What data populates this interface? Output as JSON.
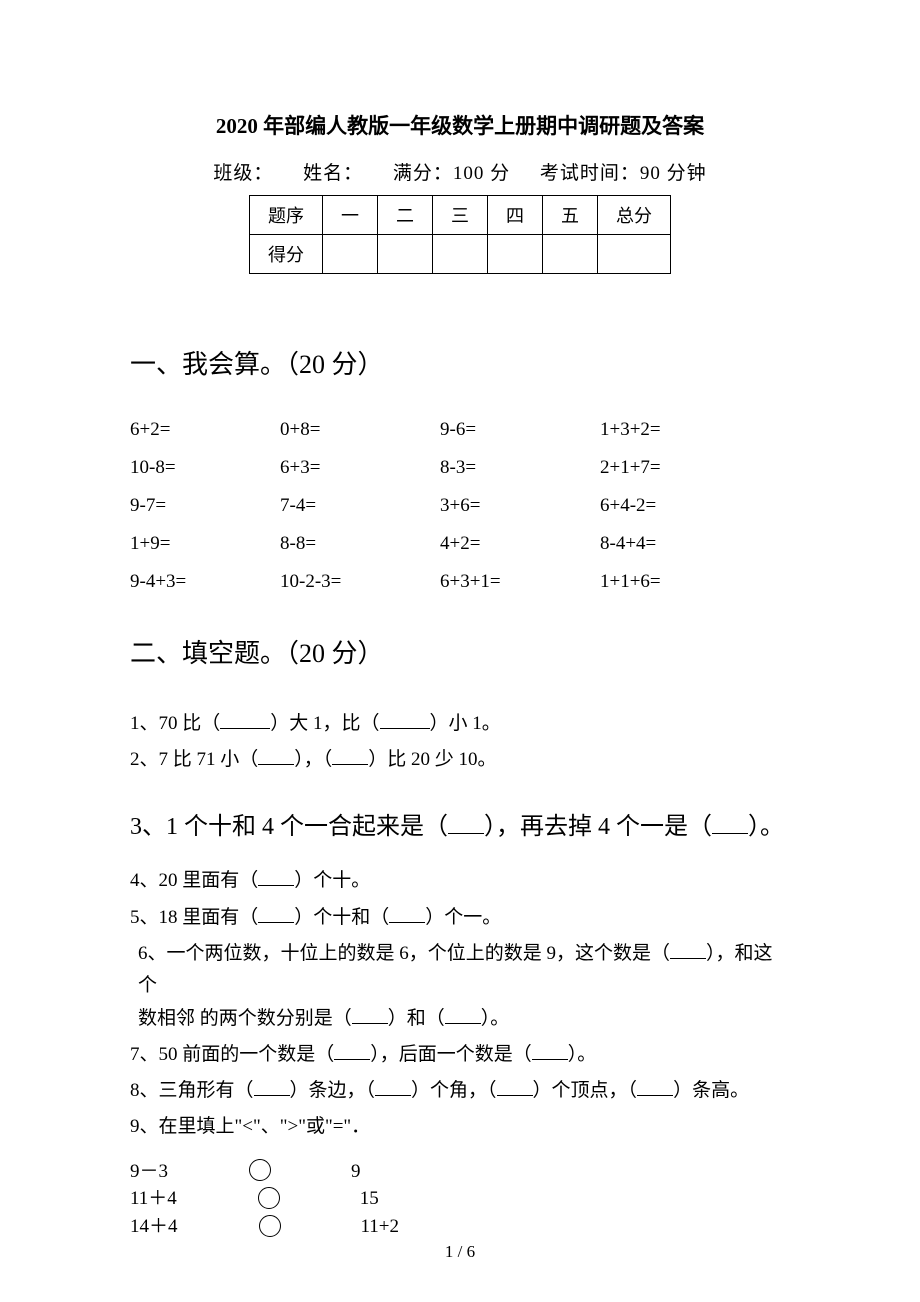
{
  "title": "2020 年部编人教版一年级数学上册期中调研题及答案",
  "info": {
    "class": "班级：",
    "name": "姓名：",
    "full": "满分：100 分",
    "time": "考试时间：90 分钟"
  },
  "scoreTable": {
    "row1": [
      "题序",
      "一",
      "二",
      "三",
      "四",
      "五",
      "总分"
    ],
    "row2label": "得分"
  },
  "section1": {
    "heading": "一、我会算。（20 分）",
    "items": [
      "6+2=",
      "0+8=",
      "9-6=",
      "1+3+2=",
      "10-8=",
      "6+3=",
      "8-3=",
      "2+1+7=",
      "9-7=",
      "7-4=",
      "3+6=",
      "6+4-2=",
      "1+9=",
      "8-8=",
      "4+2=",
      "8-4+4=",
      "9-4+3=",
      "10-2-3=",
      "6+3+1=",
      "1+1+6="
    ]
  },
  "section2": {
    "heading": "二、填空题。（20 分）",
    "q1a": "1、70 比（",
    "q1b": "）大 1，比（",
    "q1c": "）小 1。",
    "q2a": "2、7 比 71 小（",
    "q2b": "），（",
    "q2c": "）比 20 少 10。",
    "q3a": "3、1 个十和 4 个一合起来是（",
    "q3b": "），再去掉 4 个一是（",
    "q3c": "）。",
    "q4a": "4、20 里面有（",
    "q4b": "）个十。",
    "q5a": "5、18 里面有（",
    "q5b": "）个十和（",
    "q5c": "）个一。",
    "q6a": "6、一个两位数，十位上的数是 6，个位上的数是 9，这个数是（",
    "q6b": "），和这个",
    "q6c": "数相邻 的两个数分别是（",
    "q6d": "）和（",
    "q6e": "）。",
    "q7a": "7、50 前面的一个数是（",
    "q7b": "），后面一个数是（",
    "q7c": "）。",
    "q8a": "8、三角形有（",
    "q8b": "）条边，（",
    "q8c": "）个角，（",
    "q8d": "）个顶点，（",
    "q8e": "）条高。",
    "q9": "9、在里填上\"<\"、\">\"或\"=\"．",
    "compare": {
      "c1a": "9－3",
      "c1b": "9",
      "c2a": "11＋4",
      "c2b": "15",
      "c3a": "14＋4",
      "c3b": "11+2"
    }
  },
  "pageNum": "1 / 6"
}
